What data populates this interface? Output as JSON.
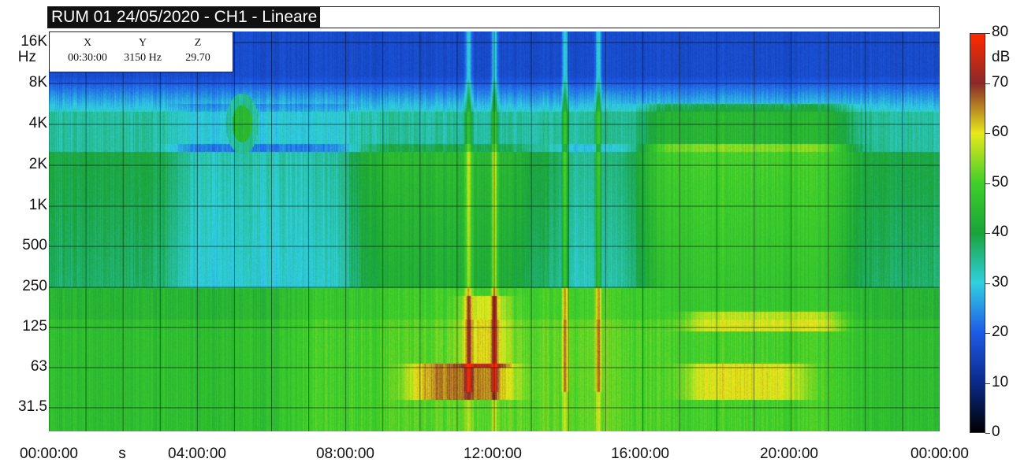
{
  "title": "RUM 01 24/05/2020 - CH1 - Lineare",
  "readout": {
    "headers": [
      "X",
      "Y",
      "Z"
    ],
    "values": [
      "00:30:00",
      "3150 Hz",
      "29.70"
    ]
  },
  "chart_data": {
    "type": "heatmap",
    "title": "RUM 01 24/05/2020 - CH1 - Lineare",
    "x_tick_labels": [
      "00:00:00",
      "s",
      "04:00:00",
      "08:00:00",
      "12:00:00",
      "16:00:00",
      "20:00:00",
      "00:00:00"
    ],
    "x_range_hours": [
      0,
      24
    ],
    "y_scale": "log",
    "y_tick_labels": [
      "16K",
      "8K",
      "4K",
      "2K",
      "1K",
      "500",
      "250",
      "125",
      "63",
      "31.5"
    ],
    "y_unit_label": "Hz",
    "z_unit": "dB",
    "colorbar_ticks": [
      0,
      10,
      20,
      30,
      40,
      50,
      60,
      70,
      80
    ],
    "colorbar_colors": [
      "#000000",
      "#0a2a8a",
      "#1e5ae6",
      "#30d0e0",
      "#1aa33a",
      "#3ecf2a",
      "#e8e81a",
      "#8a2a2a",
      "#ff2a00"
    ],
    "z_range": [
      0,
      80
    ],
    "grid": true
  }
}
